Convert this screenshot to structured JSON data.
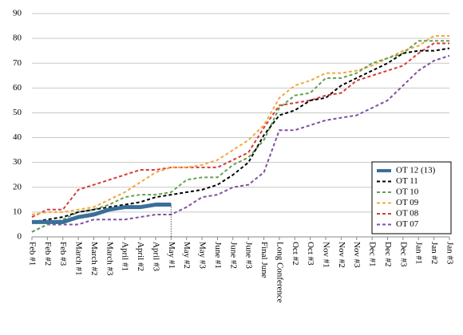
{
  "chart_data": {
    "type": "line",
    "categories": [
      "Feb #1",
      "Feb #2",
      "Feb #3",
      "March #1",
      "March #2",
      "March #3",
      "April #1",
      "April #2",
      "April #3",
      "May #1",
      "May #2",
      "May #3",
      "June #1",
      "June #2",
      "June #3",
      "Final June",
      "Long Conference",
      "Oct #2",
      "Oct #3",
      "Nov #1",
      "Nov #2",
      "Nov #3",
      "Dec #1",
      "Dec #2",
      "Dec #3",
      "Jan #1",
      "Jan #2",
      "Jan #3"
    ],
    "series": [
      {
        "name": "OT 12 (13)",
        "color": "#3a6f99",
        "values": [
          6,
          6,
          6,
          8,
          9,
          11,
          12,
          12,
          13,
          13,
          null,
          null,
          null,
          null,
          null,
          null,
          null,
          null,
          null,
          null,
          null,
          null,
          null,
          null,
          null,
          null,
          null,
          null
        ]
      },
      {
        "name": "OT 11",
        "color": "#000000",
        "values": [
          6,
          7,
          8,
          10,
          11,
          12,
          13,
          14,
          16,
          17,
          18,
          19,
          21,
          25,
          30,
          41,
          49,
          51,
          55,
          56,
          61,
          64,
          67,
          70,
          74,
          75,
          75,
          76
        ]
      },
      {
        "name": "OT 10",
        "color": "#64a050",
        "values": [
          2,
          5,
          7,
          10,
          11,
          13,
          16,
          17,
          17,
          18,
          23,
          24,
          24,
          29,
          32,
          39,
          52,
          57,
          58,
          64,
          64,
          66,
          70,
          72,
          74,
          79,
          79,
          79
        ]
      },
      {
        "name": "OT 09",
        "color": "#f5a640",
        "values": [
          9,
          10,
          10,
          11,
          12,
          15,
          18,
          22,
          26,
          28,
          28,
          29,
          31,
          35,
          39,
          45,
          56,
          61,
          63,
          66,
          66,
          67,
          69,
          72,
          75,
          77,
          81,
          81
        ]
      },
      {
        "name": "OT 08",
        "color": "#d43a3a",
        "values": [
          8,
          11,
          11,
          19,
          21,
          23,
          25,
          27,
          27,
          28,
          28,
          28,
          28,
          31,
          34,
          44,
          53,
          54,
          55,
          57,
          58,
          63,
          65,
          67,
          69,
          74,
          78,
          78
        ]
      },
      {
        "name": "OT 07",
        "color": "#7f4f9f",
        "values": [
          2,
          5,
          5,
          5,
          7,
          7,
          7,
          8,
          9,
          9,
          12,
          16,
          17,
          20,
          21,
          26,
          43,
          43,
          45,
          47,
          48,
          49,
          52,
          55,
          61,
          67,
          71,
          73
        ]
      }
    ],
    "ylim": [
      0,
      90
    ],
    "yticks": [
      0,
      10,
      20,
      30,
      40,
      50,
      60,
      70,
      80,
      90
    ],
    "grid": true,
    "legend": "lower right"
  }
}
